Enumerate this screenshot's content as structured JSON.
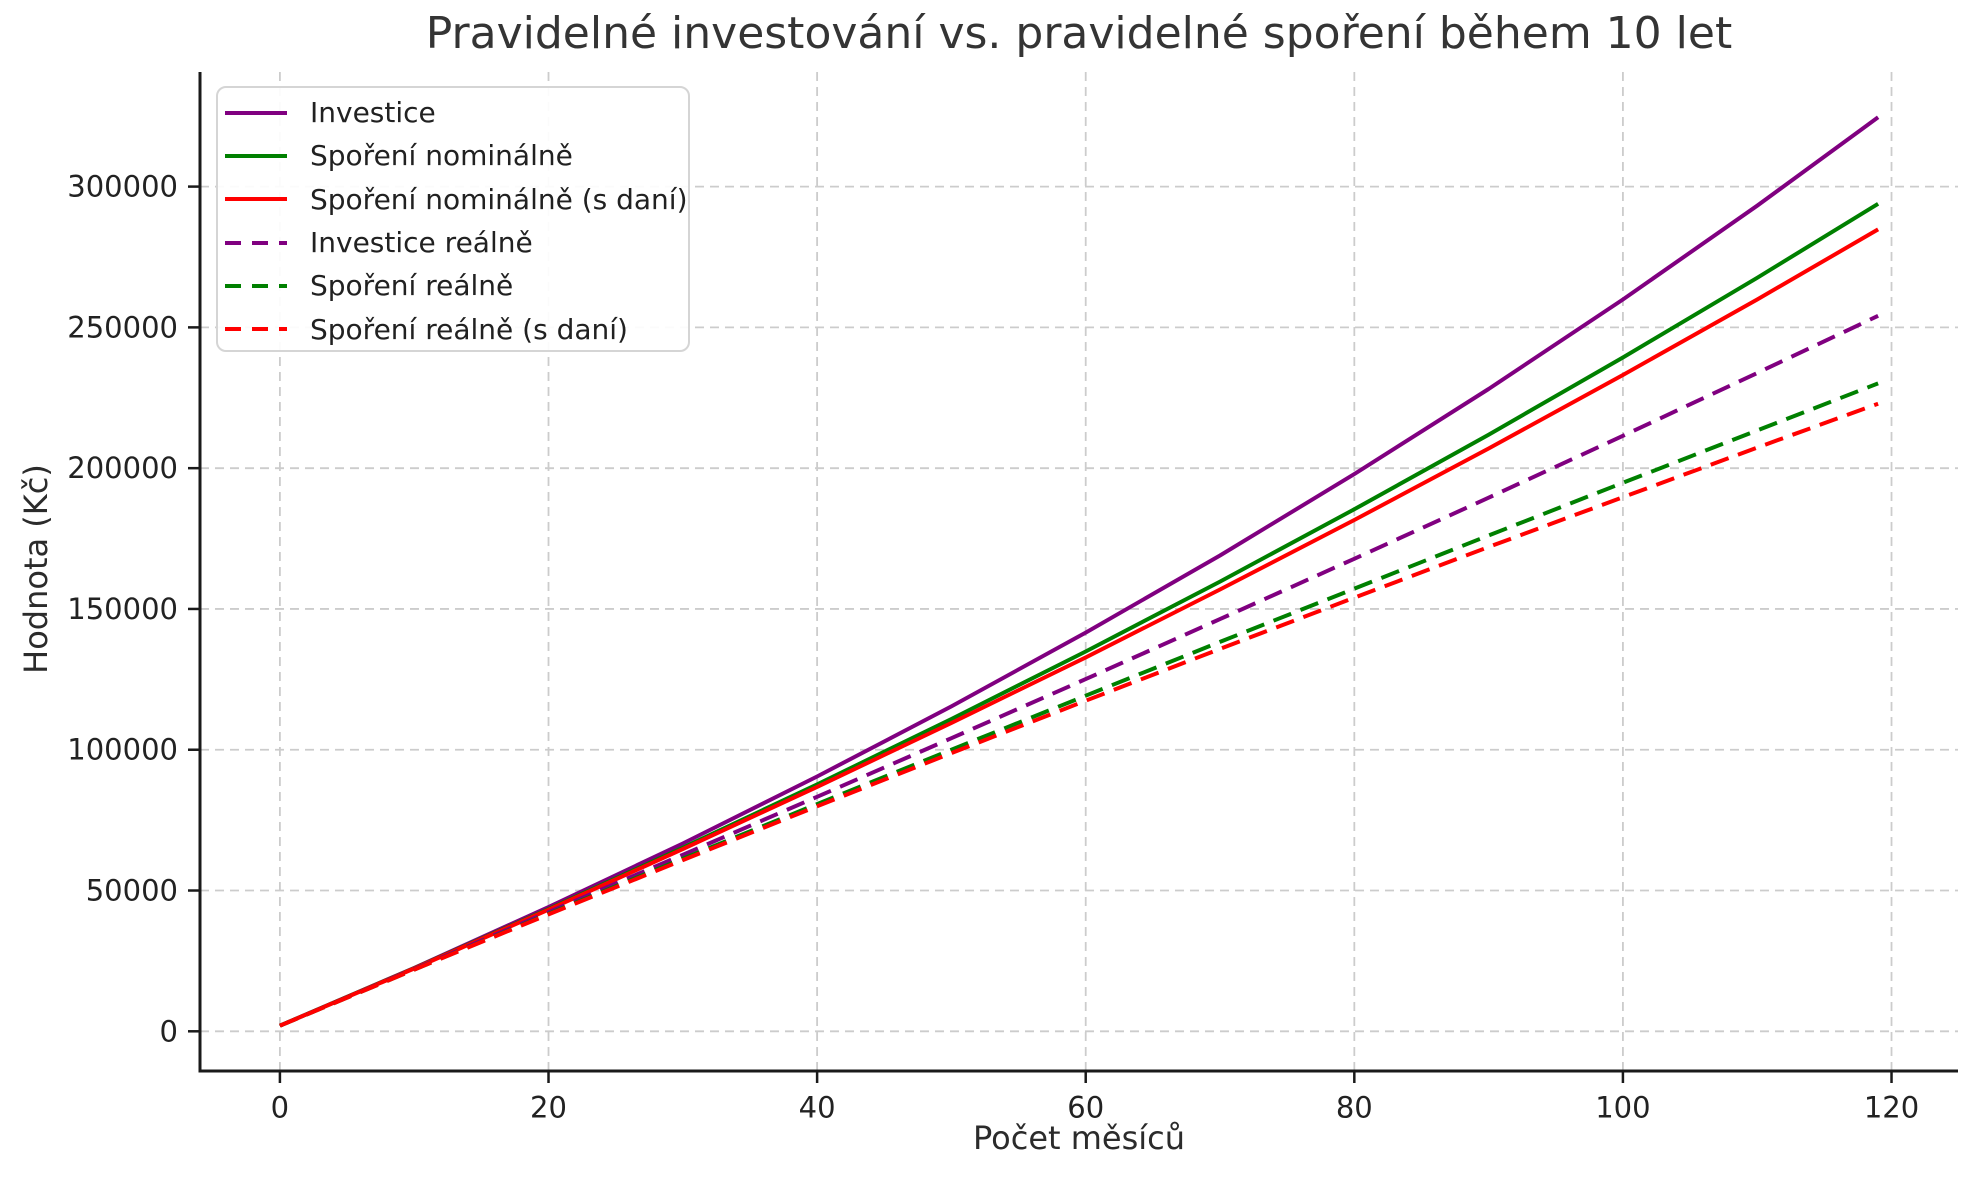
{
  "chart_data": {
    "type": "line",
    "title": "Pravidelné investování vs. pravidelné spoření během 10 let",
    "xlabel": "Počet měsíců",
    "ylabel": "Hodnota (Kč)",
    "xlim": [
      -5.95,
      124.95
    ],
    "ylim": [
      -14100,
      340700
    ],
    "x_ticks": [
      0,
      20,
      40,
      60,
      80,
      100,
      120
    ],
    "y_ticks": [
      0,
      50000,
      100000,
      150000,
      200000,
      250000,
      300000
    ],
    "grid": true,
    "legend_position": "upper-left",
    "x": [
      0,
      10,
      20,
      30,
      40,
      50,
      60,
      70,
      80,
      90,
      100,
      110,
      119
    ],
    "series": [
      {
        "name": "Investice",
        "color": "#800080",
        "dash": false,
        "values": [
          2000,
          22500,
          44100,
          66700,
          90500,
          115400,
          141600,
          169000,
          197900,
          228100,
          259900,
          293200,
          324600
        ]
      },
      {
        "name": "Spoření nominálně",
        "color": "#008000",
        "dash": false,
        "values": [
          2000,
          22400,
          43400,
          65200,
          87700,
          110900,
          134900,
          159700,
          185400,
          211900,
          239300,
          267600,
          293900
        ]
      },
      {
        "name": "Spoření nominálně (s daní)",
        "color": "#ff0000",
        "dash": false,
        "values": [
          2000,
          22300,
          43200,
          64700,
          86800,
          109500,
          132800,
          156900,
          181600,
          207000,
          233100,
          259900,
          284800
        ]
      },
      {
        "name": "Investice reálně",
        "color": "#800080",
        "dash": true,
        "values": [
          2000,
          22100,
          42300,
          62700,
          83300,
          104100,
          125100,
          146400,
          167800,
          189500,
          211500,
          233800,
          254100
        ]
      },
      {
        "name": "Spoření reálně",
        "color": "#008000",
        "dash": true,
        "values": [
          2000,
          21900,
          41700,
          61300,
          80700,
          100000,
          119200,
          138300,
          157200,
          176100,
          194800,
          213400,
          230100
        ]
      },
      {
        "name": "Spoření reálně (s daní)",
        "color": "#ff0000",
        "dash": true,
        "values": [
          2000,
          21900,
          41500,
          60800,
          79900,
          98800,
          117400,
          135800,
          154000,
          172000,
          189700,
          207300,
          222900
        ]
      }
    ]
  }
}
